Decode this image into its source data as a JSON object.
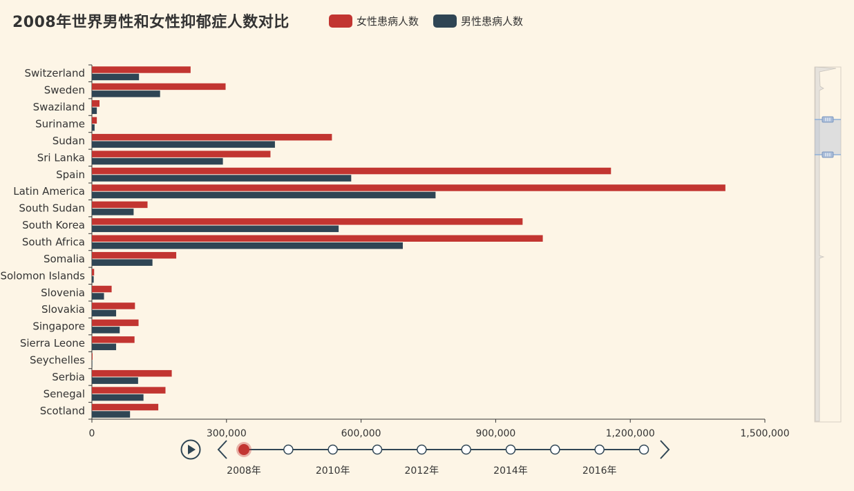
{
  "title": "2008年世界男性和女性抑郁症人数对比",
  "legend": [
    {
      "name": "女性患病人数",
      "color": "#c23531"
    },
    {
      "name": "男性患病人数",
      "color": "#2f4554"
    }
  ],
  "chart_data": {
    "type": "bar",
    "orientation": "horizontal",
    "title": "2008年世界男性和女性抑郁症人数对比",
    "categories": [
      "Switzerland",
      "Sweden",
      "Swaziland",
      "Suriname",
      "Sudan",
      "Sri Lanka",
      "Spain",
      "Latin America",
      "South Sudan",
      "South Korea",
      "South Africa",
      "Somalia",
      "Solomon Islands",
      "Slovenia",
      "Slovakia",
      "Singapore",
      "Sierra Leone",
      "Seychelles",
      "Serbia",
      "Senegal",
      "Scotland"
    ],
    "series": [
      {
        "name": "女性患病人数",
        "color": "#c23531",
        "values": [
          220000,
          298000,
          17000,
          11000,
          535000,
          398000,
          1157000,
          1412000,
          124000,
          960000,
          1005000,
          188000,
          5000,
          44000,
          96000,
          104000,
          95000,
          1500,
          178000,
          164000,
          148000
        ]
      },
      {
        "name": "男性患病人数",
        "color": "#2f4554",
        "values": [
          105000,
          152000,
          11000,
          6000,
          408000,
          292000,
          578000,
          766000,
          93000,
          550000,
          693000,
          135000,
          4000,
          27000,
          54000,
          62000,
          54000,
          1000,
          103000,
          115000,
          85000
        ]
      }
    ],
    "xlim": [
      0,
      1500000
    ],
    "xticks": [
      "0",
      "300,000",
      "600,000",
      "900,000",
      "1,200,000",
      "1,500,000"
    ],
    "legend_position": "top"
  },
  "timeline": {
    "labels": [
      "2008年",
      "2010年",
      "2012年",
      "2014年",
      "2016年"
    ],
    "active_index": 0,
    "point_count": 10
  },
  "colors": {
    "background": "#fdf5e6",
    "female": "#c23531",
    "male": "#2f4554",
    "timeline": "#2f4554",
    "zoom": "#8fb0d7"
  }
}
